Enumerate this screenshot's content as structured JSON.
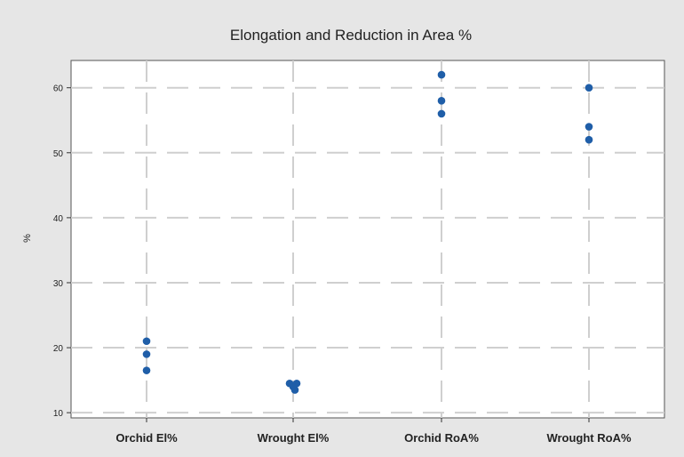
{
  "chart_data": {
    "type": "scatter",
    "title": "Elongation and Reduction in Area %",
    "xlabel": "",
    "ylabel": "%",
    "categories": [
      "Orchid El%",
      "Wrought El%",
      "Orchid RoA%",
      "Wrought RoA%"
    ],
    "points": [
      {
        "category": "Orchid El%",
        "values": [
          21,
          19,
          16.5
        ]
      },
      {
        "category": "Wrought El%",
        "values": [
          14.5,
          14.5,
          14,
          13.5
        ]
      },
      {
        "category": "Orchid RoA%",
        "values": [
          62,
          58,
          56
        ]
      },
      {
        "category": "Wrought RoA%",
        "values": [
          60,
          54,
          52
        ]
      }
    ],
    "yticks": [
      10,
      20,
      30,
      40,
      50,
      60
    ],
    "ylim": [
      9.2,
      64.2
    ],
    "grid": true,
    "legend": "none",
    "colors": {
      "point": "#1f5ea8",
      "grid": "#cfcfcf",
      "plot_bg": "#ffffff",
      "page_bg": "#e6e6e6"
    }
  }
}
